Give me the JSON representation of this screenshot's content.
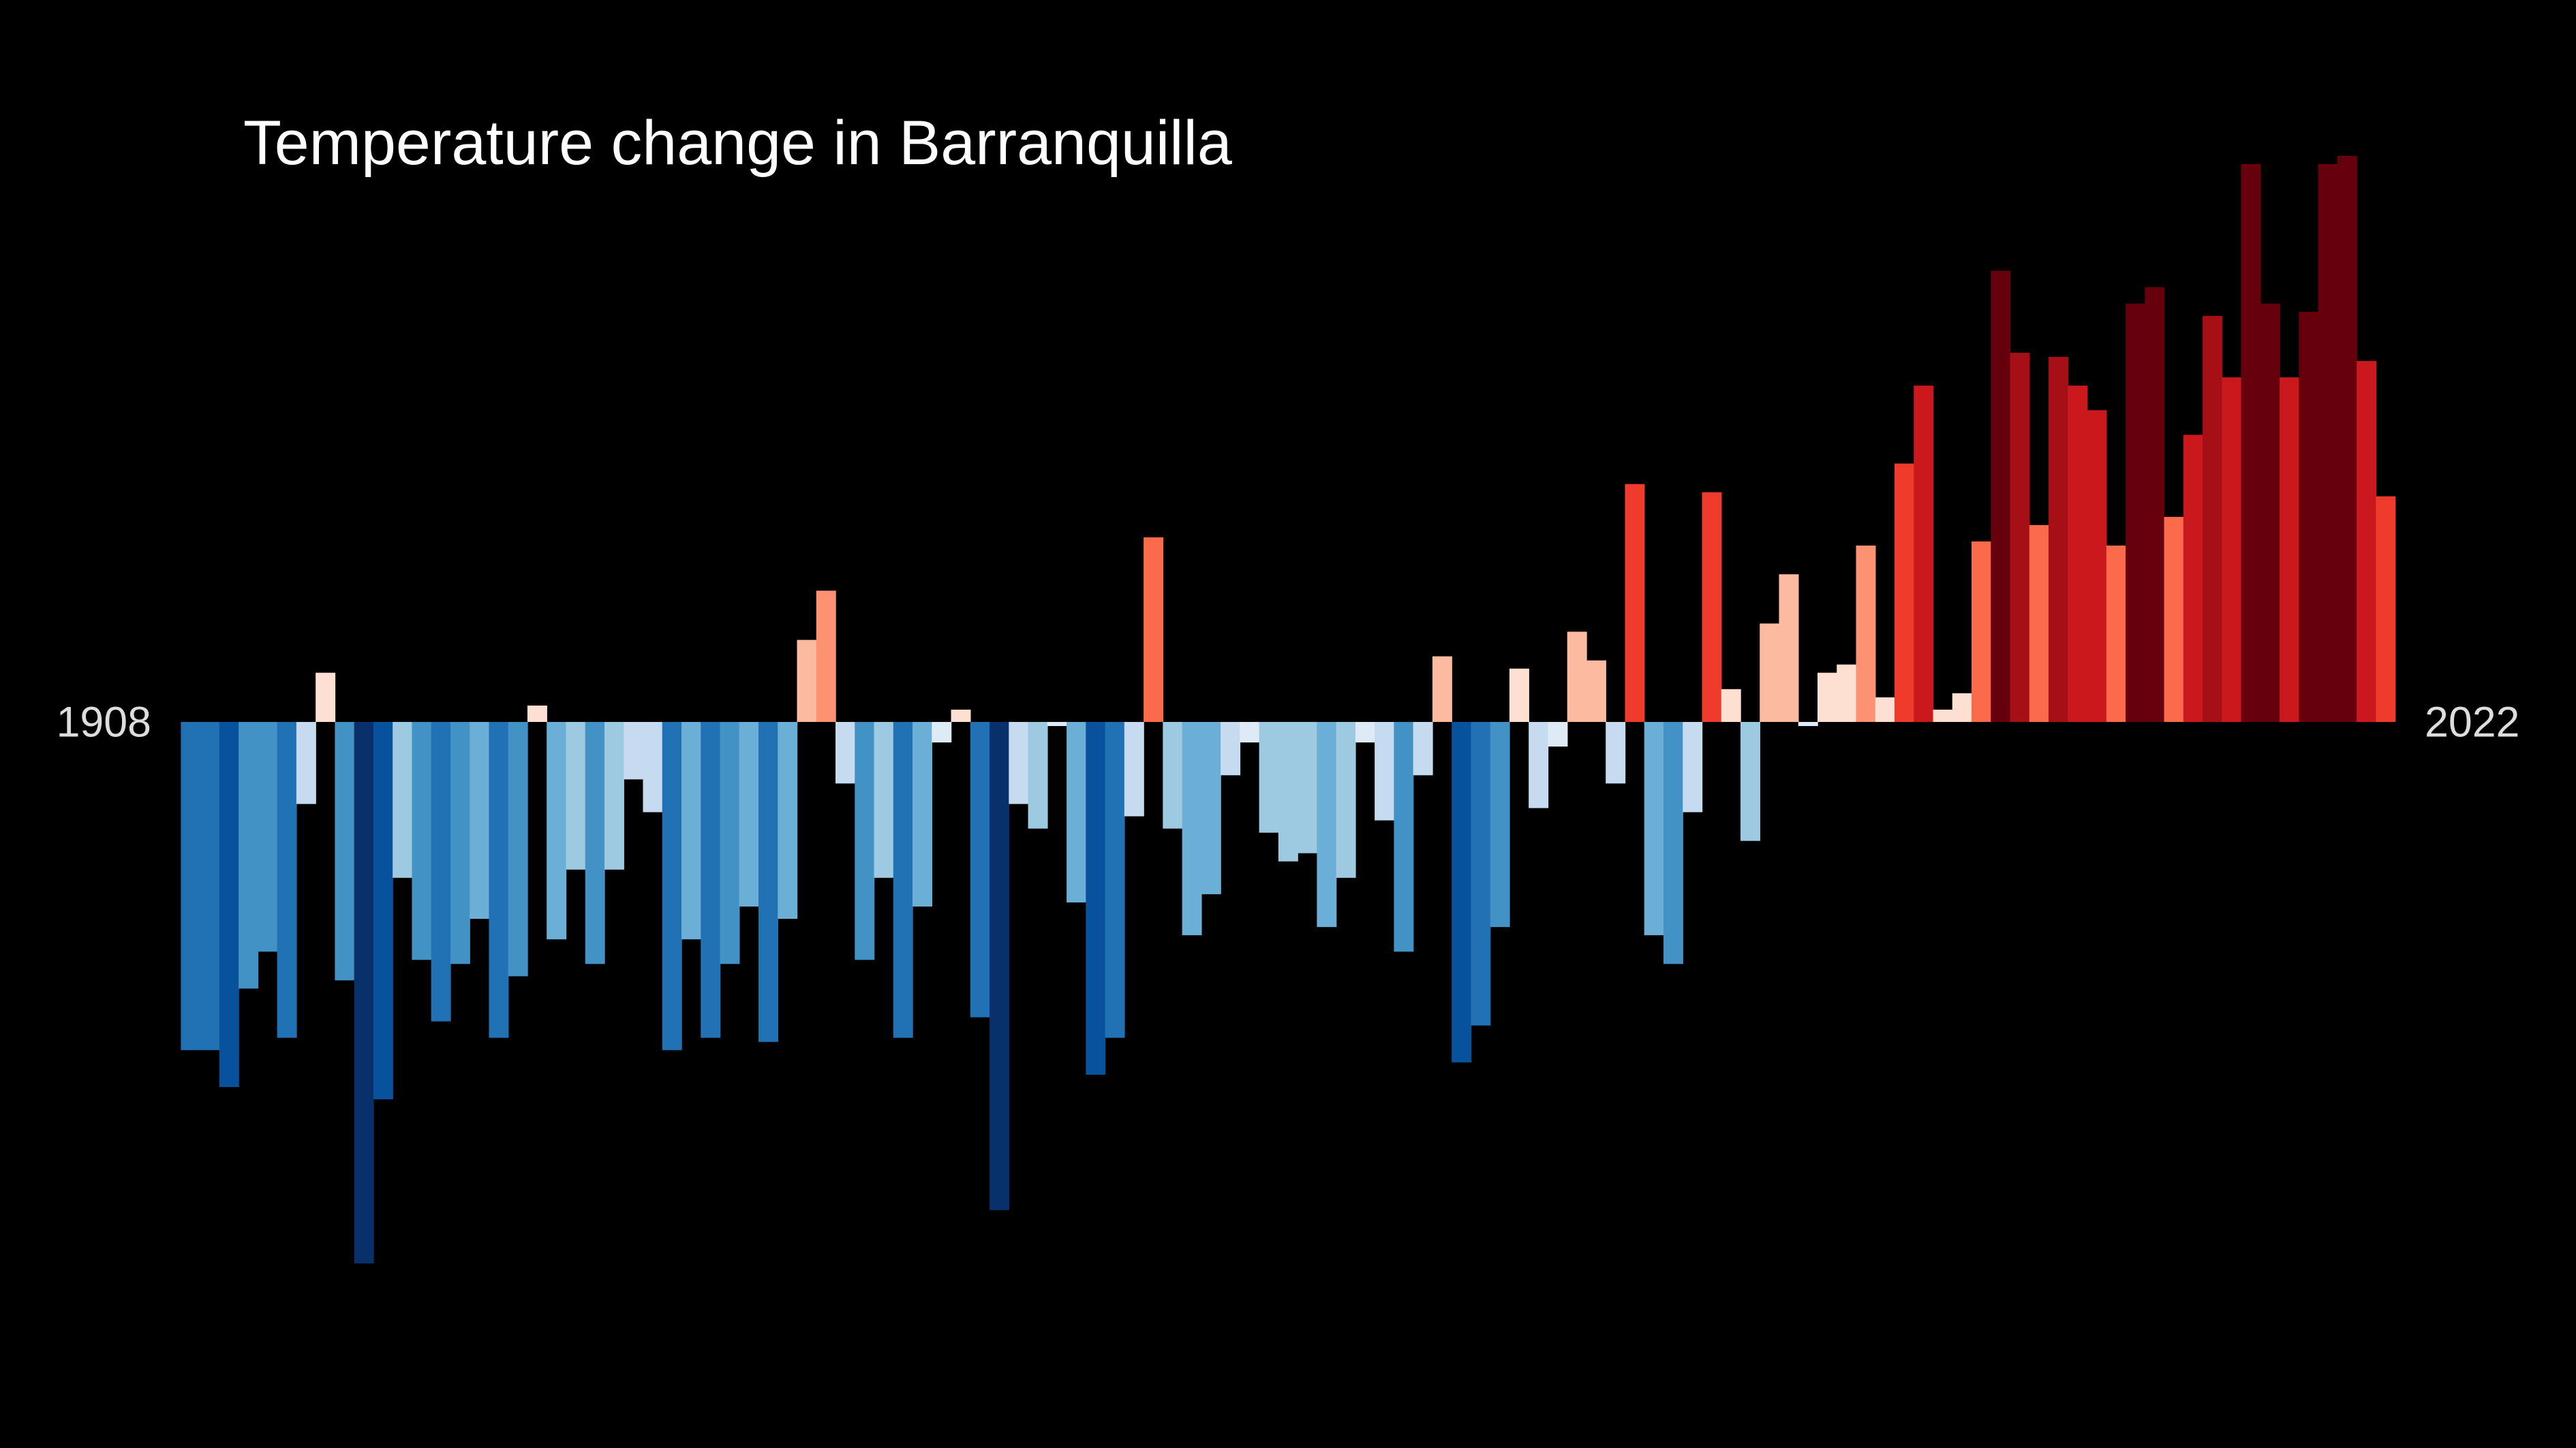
{
  "chart_data": {
    "type": "bar",
    "title": "Temperature change in Barranquilla",
    "categories": [
      "1908",
      null,
      null,
      null,
      null,
      null,
      null,
      null,
      null,
      null,
      null,
      null,
      null,
      null,
      null,
      null,
      null,
      null,
      null,
      null,
      null,
      null,
      null,
      null,
      null,
      null,
      null,
      null,
      null,
      null,
      null,
      null,
      null,
      null,
      null,
      null,
      null,
      null,
      null,
      null,
      null,
      null,
      null,
      null,
      null,
      null,
      null,
      null,
      null,
      null,
      null,
      null,
      null,
      null,
      null,
      null,
      null,
      null,
      null,
      null,
      null,
      null,
      null,
      null,
      null,
      null,
      null,
      null,
      null,
      null,
      null,
      null,
      null,
      null,
      null,
      null,
      null,
      null,
      null,
      null,
      null,
      null,
      null,
      null,
      null,
      null,
      null,
      null,
      null,
      null,
      null,
      null,
      null,
      null,
      null,
      null,
      null,
      null,
      null,
      null,
      null,
      null,
      null,
      null,
      null,
      null,
      null,
      null,
      null,
      null,
      null,
      null,
      null,
      null,
      "2022"
    ],
    "values": [
      -0.8,
      -0.8,
      -0.89,
      -0.65,
      -0.56,
      -0.77,
      -0.2,
      0.12,
      -0.63,
      -1.32,
      -0.92,
      -0.38,
      -0.58,
      -0.73,
      -0.59,
      -0.48,
      -0.77,
      -0.62,
      0.04,
      -0.53,
      -0.36,
      -0.59,
      -0.36,
      -0.14,
      -0.22,
      -0.8,
      -0.53,
      -0.77,
      -0.59,
      -0.45,
      -0.78,
      -0.48,
      0.2,
      0.32,
      -0.15,
      -0.58,
      -0.38,
      -0.77,
      -0.45,
      -0.05,
      0.03,
      -0.72,
      -1.19,
      -0.2,
      -0.26,
      -0.01,
      -0.44,
      -0.86,
      -0.77,
      -0.23,
      0.45,
      -0.26,
      -0.52,
      -0.42,
      -0.13,
      -0.05,
      -0.27,
      -0.34,
      -0.32,
      -0.5,
      -0.38,
      -0.05,
      -0.24,
      -0.56,
      -0.13,
      0.16,
      -0.83,
      -0.74,
      -0.5,
      0.13,
      -0.21,
      -0.06,
      0.22,
      0.15,
      -0.15,
      0.58,
      -0.52,
      -0.59,
      -0.22,
      0.56,
      0.08,
      -0.29,
      0.24,
      0.36,
      -0.01,
      0.12,
      0.14,
      0.43,
      0.06,
      0.63,
      0.82,
      0.03,
      0.07,
      0.44,
      1.1,
      0.9,
      0.48,
      0.89,
      0.82,
      0.76,
      0.43,
      1.02,
      1.06,
      0.5,
      0.7,
      0.99,
      0.84,
      1.36,
      1.02,
      0.84,
      1.0,
      1.36,
      1.38,
      0.88,
      0.55
    ],
    "colors": [
      "#2171b5",
      "#2171b5",
      "#08519c",
      "#4292c6",
      "#4292c6",
      "#2171b5",
      "#c6dbef",
      "#fee0d2",
      "#4292c6",
      "#08306b",
      "#08519c",
      "#9ecae1",
      "#4292c6",
      "#2171b5",
      "#4292c6",
      "#6baed6",
      "#2171b5",
      "#4292c6",
      "#fee0d2",
      "#6baed6",
      "#9ecae1",
      "#4292c6",
      "#9ecae1",
      "#c6dbef",
      "#c6dbef",
      "#2171b5",
      "#6baed6",
      "#2171b5",
      "#4292c6",
      "#6baed6",
      "#2171b5",
      "#6baed6",
      "#fcbba1",
      "#fc9272",
      "#c6dbef",
      "#4292c6",
      "#9ecae1",
      "#2171b5",
      "#6baed6",
      "#deebf7",
      "#fee0d2",
      "#2171b5",
      "#08306b",
      "#c6dbef",
      "#9ecae1",
      "#deebf7",
      "#6baed6",
      "#08519c",
      "#2171b5",
      "#c6dbef",
      "#fb6a4a",
      "#9ecae1",
      "#6baed6",
      "#6baed6",
      "#c6dbef",
      "#deebf7",
      "#9ecae1",
      "#9ecae1",
      "#9ecae1",
      "#6baed6",
      "#9ecae1",
      "#deebf7",
      "#c6dbef",
      "#4292c6",
      "#c6dbef",
      "#fcbba1",
      "#08519c",
      "#2171b5",
      "#4292c6",
      "#fee0d2",
      "#c6dbef",
      "#deebf7",
      "#fcbba1",
      "#fcbba1",
      "#c6dbef",
      "#ef3b2c",
      "#6baed6",
      "#4292c6",
      "#c6dbef",
      "#ef3b2c",
      "#fee0d2",
      "#9ecae1",
      "#fcbba1",
      "#fcbba1",
      "#deebf7",
      "#fee0d2",
      "#fee0d2",
      "#fc9272",
      "#fee0d2",
      "#ef3b2c",
      "#cb181d",
      "#fee0d2",
      "#fee0d2",
      "#fb6a4a",
      "#67000d",
      "#a50f15",
      "#fb6a4a",
      "#a50f15",
      "#cb181d",
      "#cb181d",
      "#fb6a4a",
      "#67000d",
      "#67000d",
      "#fb6a4a",
      "#cb181d",
      "#a50f15",
      "#cb181d",
      "#67000d",
      "#67000d",
      "#cb181d",
      "#67000d",
      "#67000d",
      "#67000d",
      "#cb181d",
      "#ef3b2c"
    ],
    "ylim": [
      -1.77,
      1.76
    ]
  }
}
